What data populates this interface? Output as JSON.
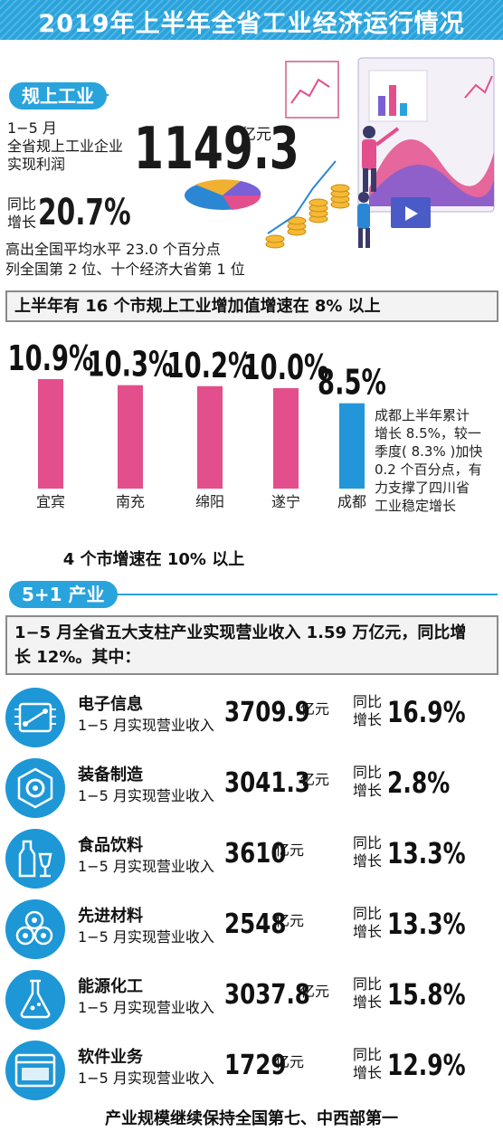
{
  "header": {
    "title": "2019年上半年全省工业经济运行情况"
  },
  "section1": {
    "label": "规上工业",
    "line1": "1−5 月",
    "line2": "全省规上工业企业",
    "line3": "实现利润",
    "profit_value": "1149.3",
    "profit_unit": "亿元",
    "yoy_label_1": "同比",
    "yoy_label_2": "增长",
    "yoy_value": "20.7%",
    "note1": "高出全国平均水平 23.0 个百分点",
    "note2": "列全国第 2 位、十个经济大省第 1 位"
  },
  "growth_box": {
    "text": "上半年有 16 个市规上工业增加值增速在 8% 以上"
  },
  "chart_data": {
    "type": "bar",
    "categories": [
      "宜宾",
      "南充",
      "绵阳",
      "遂宁",
      "成都"
    ],
    "values": [
      10.9,
      10.3,
      10.2,
      10.0,
      8.5
    ],
    "value_labels": [
      "10.9%",
      "10.3%",
      "10.2%",
      "10.0%",
      "8.5%"
    ],
    "colors": [
      "#e24f8c",
      "#e24f8c",
      "#e24f8c",
      "#e24f8c",
      "#2296d8"
    ],
    "annotation": "成都上半年累计增长 8.5%，较一季度( 8.3% )加快 0.2 个百分点，有力支撑了四川省工业稳定增长",
    "annotation_lines": [
      "成都上半年累计",
      "增长 8.5%，较一",
      "季度( 8.3% )加快",
      "0.2 个百分点，有",
      "力支撑了四川省",
      "工业稳定增长"
    ],
    "caption": "4 个市增速在 10% 以上",
    "ylim": [
      0,
      12
    ],
    "grid": false
  },
  "section2": {
    "label": "5+1 产业",
    "summary_line1": "1−5 月全省五大支柱产业实现营业收入 1.59 万亿元，同比增",
    "summary_line2": "长 12%。其中："
  },
  "industries": [
    {
      "name": "电子信息",
      "desc": "1−5 月实现营业收入",
      "value": "3709.9",
      "unit": "亿元",
      "yoy_label_1": "同比",
      "yoy_label_2": "增长",
      "yoy": "16.9%",
      "icon": "circuit-board-icon"
    },
    {
      "name": "装备制造",
      "desc": "1−5 月实现营业收入",
      "value": "3041.3",
      "unit": "亿元",
      "yoy_label_1": "同比",
      "yoy_label_2": "增长",
      "yoy": "2.8%",
      "icon": "gear-icon"
    },
    {
      "name": "食品饮料",
      "desc": "1−5 月实现营业收入",
      "value": "3610",
      "unit": "亿元",
      "yoy_label_1": "同比",
      "yoy_label_2": "增长",
      "yoy": "13.3%",
      "icon": "bottle-glass-icon"
    },
    {
      "name": "先进材料",
      "desc": "1−5 月实现营业收入",
      "value": "2548",
      "unit": "亿元",
      "yoy_label_1": "同比",
      "yoy_label_2": "增长",
      "yoy": "13.3%",
      "icon": "material-rolls-icon"
    },
    {
      "name": "能源化工",
      "desc": "1−5 月实现营业收入",
      "value": "3037.8",
      "unit": "亿元",
      "yoy_label_1": "同比",
      "yoy_label_2": "增长",
      "yoy": "15.8%",
      "icon": "flask-icon"
    },
    {
      "name": "软件业务",
      "desc": "1−5 月实现营业收入",
      "value": "1729",
      "unit": "亿元",
      "yoy_label_1": "同比",
      "yoy_label_2": "增长",
      "yoy": "12.9%",
      "icon": "software-window-icon"
    }
  ],
  "footer": {
    "text": "产业规模继续保持全国第七、中西部第一"
  }
}
